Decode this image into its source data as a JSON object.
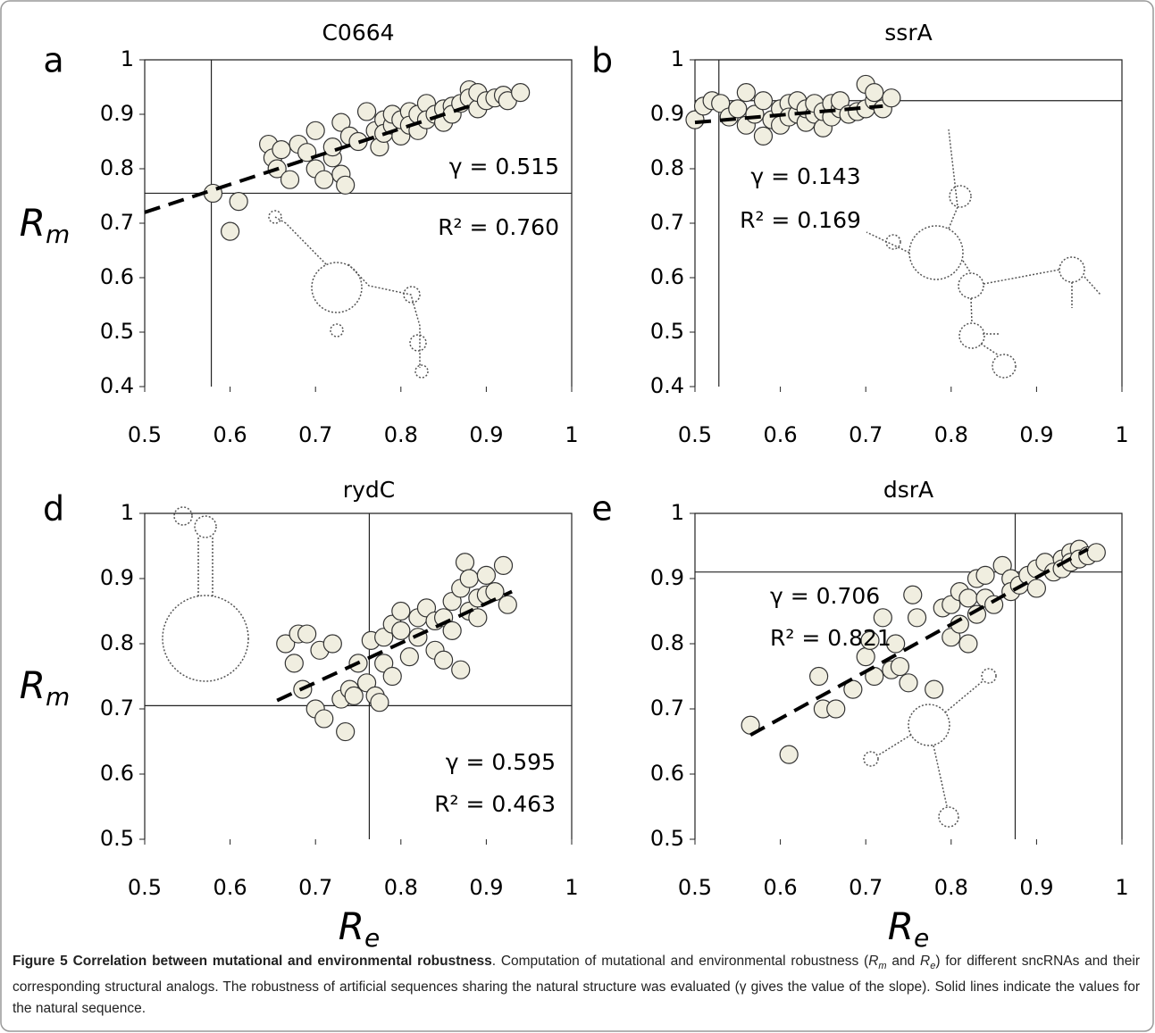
{
  "chart_data": [
    {
      "type": "scatter",
      "panel": "a",
      "title": "C0664",
      "color": "#f0eee0",
      "x": [
        0.58,
        0.6,
        0.61,
        0.645,
        0.65,
        0.655,
        0.66,
        0.67,
        0.68,
        0.69,
        0.7,
        0.7,
        0.71,
        0.72,
        0.72,
        0.73,
        0.73,
        0.735,
        0.74,
        0.75,
        0.76,
        0.77,
        0.775,
        0.78,
        0.78,
        0.79,
        0.79,
        0.8,
        0.8,
        0.81,
        0.81,
        0.82,
        0.82,
        0.83,
        0.83,
        0.84,
        0.85,
        0.85,
        0.86,
        0.86,
        0.87,
        0.88,
        0.88,
        0.89,
        0.89,
        0.9,
        0.91,
        0.92,
        0.925,
        0.94
      ],
      "y": [
        0.755,
        0.685,
        0.74,
        0.845,
        0.82,
        0.8,
        0.835,
        0.78,
        0.845,
        0.83,
        0.87,
        0.8,
        0.78,
        0.82,
        0.84,
        0.885,
        0.79,
        0.77,
        0.86,
        0.85,
        0.905,
        0.87,
        0.84,
        0.89,
        0.865,
        0.88,
        0.9,
        0.86,
        0.89,
        0.905,
        0.88,
        0.87,
        0.9,
        0.92,
        0.89,
        0.9,
        0.91,
        0.885,
        0.915,
        0.9,
        0.92,
        0.945,
        0.93,
        0.91,
        0.94,
        0.925,
        0.93,
        0.935,
        0.925,
        0.94
      ],
      "fit": {
        "x": [
          0.5,
          0.89
        ],
        "y": [
          0.72,
          0.92
        ]
      },
      "natural": {
        "x": 0.578,
        "y": 0.755
      },
      "annotations": [
        "γ = 0.515",
        "R² = 0.760"
      ],
      "ylabel": [
        "R",
        "m"
      ],
      "xlim": [
        0.5,
        1
      ],
      "ylim": [
        0.4,
        1
      ],
      "xticks": [
        0.5,
        0.6,
        0.7,
        0.8,
        0.9,
        1
      ],
      "yticks": [
        0.4,
        0.5,
        0.6,
        0.7,
        0.8,
        0.9,
        1
      ]
    },
    {
      "type": "scatter",
      "panel": "b",
      "title": "ssrA",
      "color": "#f0eee0",
      "x": [
        0.5,
        0.51,
        0.52,
        0.53,
        0.54,
        0.55,
        0.56,
        0.56,
        0.57,
        0.58,
        0.58,
        0.59,
        0.6,
        0.6,
        0.61,
        0.61,
        0.62,
        0.62,
        0.63,
        0.63,
        0.64,
        0.64,
        0.65,
        0.65,
        0.66,
        0.66,
        0.67,
        0.67,
        0.68,
        0.69,
        0.7,
        0.7,
        0.71,
        0.71,
        0.72,
        0.73
      ],
      "y": [
        0.89,
        0.915,
        0.925,
        0.92,
        0.895,
        0.91,
        0.94,
        0.88,
        0.9,
        0.86,
        0.925,
        0.89,
        0.91,
        0.88,
        0.92,
        0.895,
        0.9,
        0.925,
        0.885,
        0.91,
        0.9,
        0.92,
        0.875,
        0.905,
        0.895,
        0.92,
        0.91,
        0.925,
        0.9,
        0.905,
        0.91,
        0.955,
        0.925,
        0.94,
        0.91,
        0.93
      ],
      "fit": {
        "x": [
          0.5,
          0.72
        ],
        "y": [
          0.885,
          0.915
        ]
      },
      "natural": {
        "x": 0.528,
        "y": 0.925
      },
      "annotations": [
        "γ = 0.143",
        "R² = 0.169"
      ],
      "xlim": [
        0.5,
        1
      ],
      "ylim": [
        0.4,
        1
      ],
      "xticks": [
        0.5,
        0.6,
        0.7,
        0.8,
        0.9,
        1
      ],
      "yticks": [
        0.4,
        0.5,
        0.6,
        0.7,
        0.8,
        0.9,
        1
      ]
    },
    {
      "type": "scatter",
      "panel": "d",
      "title": "rydC",
      "color": "#f0eee0",
      "x": [
        0.665,
        0.68,
        0.675,
        0.685,
        0.69,
        0.7,
        0.705,
        0.71,
        0.72,
        0.73,
        0.735,
        0.74,
        0.745,
        0.75,
        0.76,
        0.765,
        0.77,
        0.775,
        0.78,
        0.78,
        0.79,
        0.79,
        0.8,
        0.8,
        0.81,
        0.82,
        0.82,
        0.83,
        0.84,
        0.84,
        0.85,
        0.85,
        0.86,
        0.86,
        0.87,
        0.87,
        0.875,
        0.88,
        0.88,
        0.89,
        0.89,
        0.9,
        0.9,
        0.91,
        0.92,
        0.925
      ],
      "y": [
        0.8,
        0.815,
        0.77,
        0.73,
        0.815,
        0.7,
        0.79,
        0.685,
        0.8,
        0.715,
        0.665,
        0.73,
        0.72,
        0.77,
        0.74,
        0.805,
        0.72,
        0.71,
        0.81,
        0.77,
        0.83,
        0.75,
        0.85,
        0.82,
        0.78,
        0.84,
        0.81,
        0.855,
        0.79,
        0.835,
        0.775,
        0.84,
        0.865,
        0.82,
        0.885,
        0.76,
        0.925,
        0.85,
        0.9,
        0.84,
        0.87,
        0.905,
        0.875,
        0.88,
        0.92,
        0.86
      ],
      "fit": {
        "x": [
          0.655,
          0.93
        ],
        "y": [
          0.713,
          0.88
        ]
      },
      "natural": {
        "x": 0.763,
        "y": 0.705
      },
      "annotations": [
        "γ = 0.595",
        "R² = 0.463"
      ],
      "ylabel": [
        "R",
        "m"
      ],
      "xlabel": [
        "R",
        "e"
      ],
      "xlim": [
        0.5,
        1
      ],
      "ylim": [
        0.5,
        1
      ],
      "xticks": [
        0.5,
        0.6,
        0.7,
        0.8,
        0.9,
        1
      ],
      "yticks": [
        0.5,
        0.6,
        0.7,
        0.8,
        0.9,
        1
      ]
    },
    {
      "type": "scatter",
      "panel": "e",
      "title": "dsrA",
      "color": "#f0eee0",
      "x": [
        0.565,
        0.61,
        0.645,
        0.65,
        0.665,
        0.685,
        0.7,
        0.705,
        0.71,
        0.72,
        0.73,
        0.735,
        0.74,
        0.75,
        0.755,
        0.76,
        0.78,
        0.79,
        0.8,
        0.8,
        0.81,
        0.81,
        0.82,
        0.82,
        0.83,
        0.83,
        0.84,
        0.84,
        0.85,
        0.86,
        0.87,
        0.87,
        0.88,
        0.89,
        0.9,
        0.9,
        0.91,
        0.92,
        0.93,
        0.93,
        0.94,
        0.94,
        0.95,
        0.95,
        0.96,
        0.97
      ],
      "y": [
        0.675,
        0.63,
        0.75,
        0.7,
        0.7,
        0.73,
        0.78,
        0.805,
        0.75,
        0.84,
        0.76,
        0.8,
        0.765,
        0.74,
        0.875,
        0.84,
        0.73,
        0.855,
        0.81,
        0.86,
        0.83,
        0.88,
        0.8,
        0.87,
        0.9,
        0.845,
        0.87,
        0.905,
        0.86,
        0.92,
        0.9,
        0.88,
        0.89,
        0.905,
        0.915,
        0.885,
        0.925,
        0.91,
        0.93,
        0.915,
        0.94,
        0.925,
        0.945,
        0.93,
        0.935,
        0.94
      ],
      "fit": {
        "x": [
          0.565,
          0.96
        ],
        "y": [
          0.66,
          0.945
        ]
      },
      "natural": {
        "x": 0.875,
        "y": 0.91
      },
      "annotations": [
        "γ = 0.706",
        "R² = 0.821"
      ],
      "xlabel": [
        "R",
        "e"
      ],
      "xlim": [
        0.5,
        1
      ],
      "ylim": [
        0.5,
        1
      ],
      "xticks": [
        0.5,
        0.6,
        0.7,
        0.8,
        0.9,
        1
      ],
      "yticks": [
        0.5,
        0.6,
        0.7,
        0.8,
        0.9,
        1
      ]
    }
  ],
  "caption": {
    "segments": [
      {
        "text": "Figure 5 Correlation between mutational and environmental robustness",
        "style": "bold"
      },
      {
        "text": ". Computation of mutational and environmental robustness (",
        "style": "normal"
      },
      {
        "text": "R",
        "style": "italic"
      },
      {
        "text": "m",
        "style": "sub"
      },
      {
        "text": " and ",
        "style": "normal"
      },
      {
        "text": "R",
        "style": "italic"
      },
      {
        "text": "e",
        "style": "sub"
      },
      {
        "text": ") for different sncRNAs and their corresponding structural analogs. The robustness of artificial sequences sharing the natural structure was evaluated (γ gives the value of the slope). Solid lines indicate the values for the natural sequence.",
        "style": "normal"
      }
    ]
  }
}
